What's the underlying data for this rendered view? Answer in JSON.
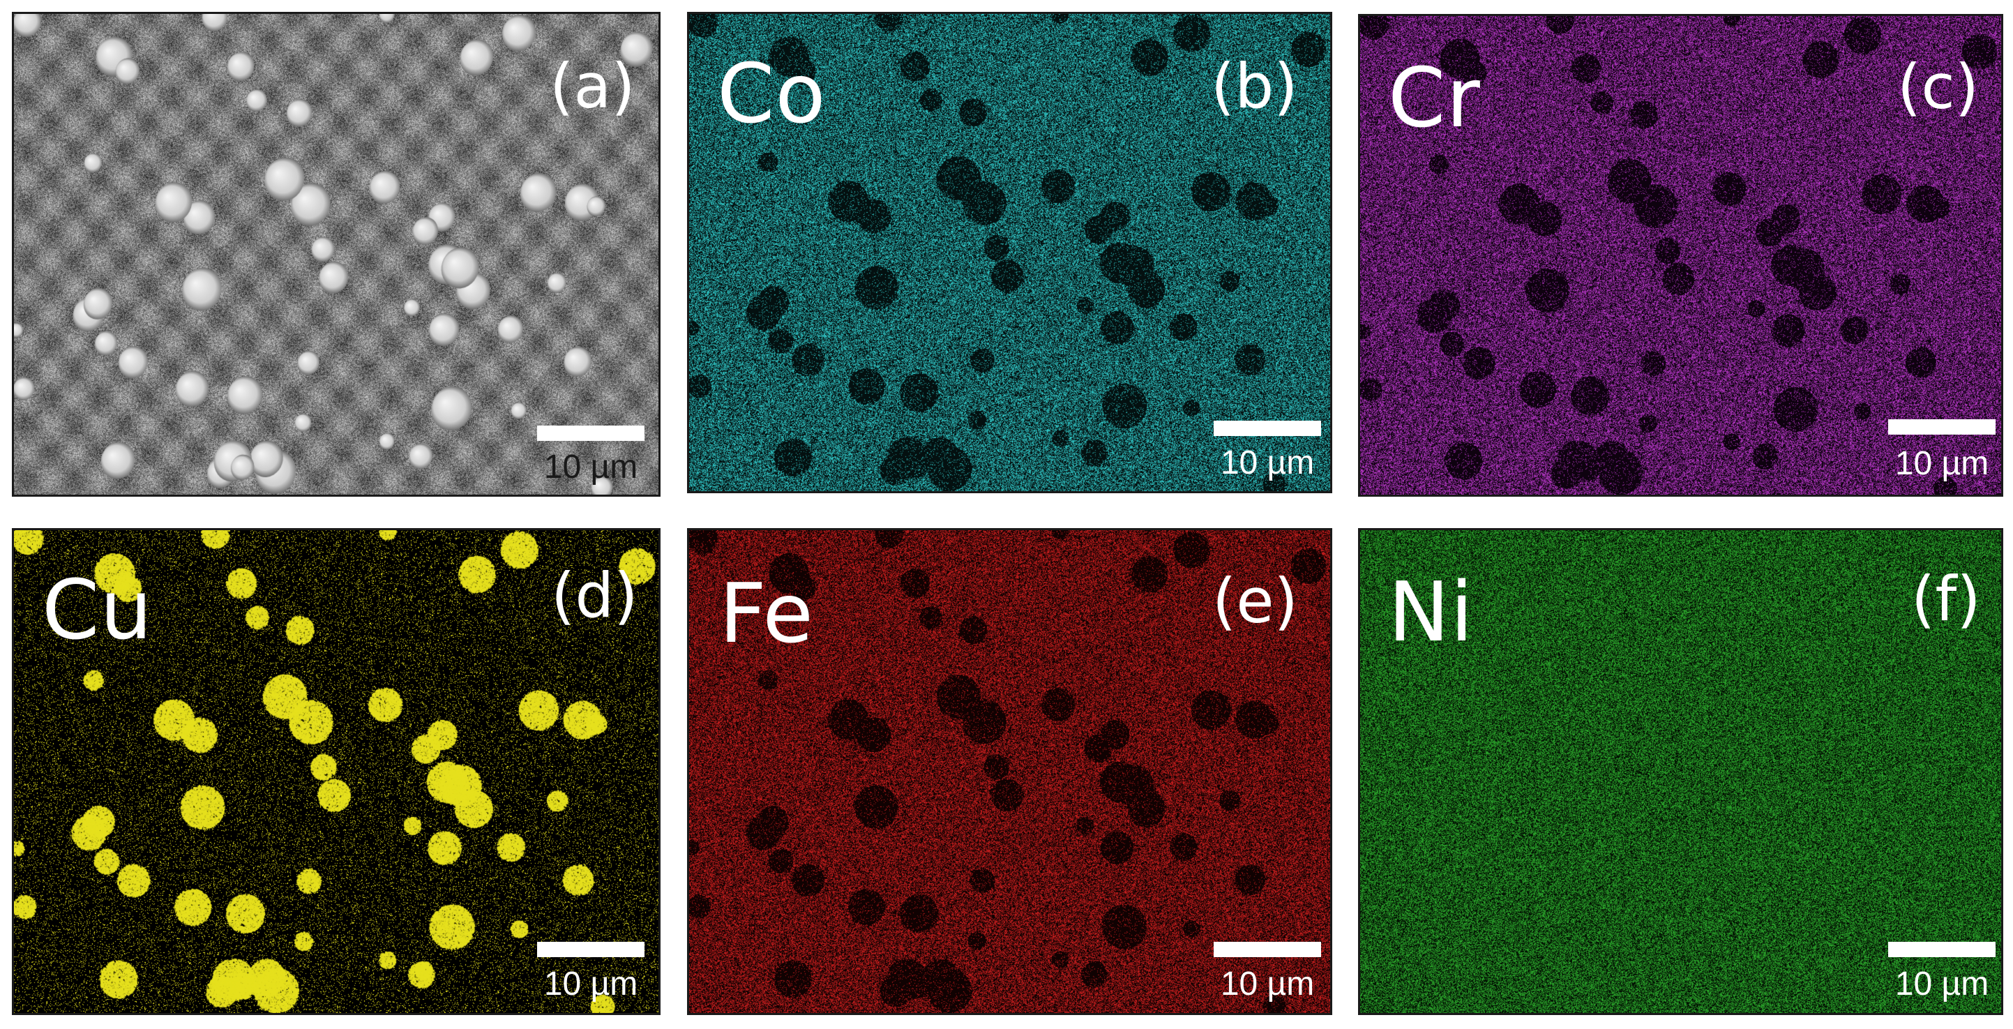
{
  "figure": {
    "panels": [
      {
        "id": "a",
        "letter": "(a)",
        "element": "",
        "map_color": "#bdbdbd",
        "background": "#3c3c3c",
        "kind": "sem",
        "scale_label": "10 µm"
      },
      {
        "id": "b",
        "letter": "(b)",
        "element": "Co",
        "map_color": "#33d3d3",
        "background": "#041010",
        "kind": "eds",
        "scale_label": "10 µm"
      },
      {
        "id": "c",
        "letter": "(c)",
        "element": "Cr",
        "map_color": "#c43bd6",
        "background": "#0e020f",
        "kind": "eds",
        "scale_label": "10 µm"
      },
      {
        "id": "d",
        "letter": "(d)",
        "element": "Cu",
        "map_color": "#e6e01e",
        "background": "#000000",
        "kind": "eds-sparse",
        "scale_label": "10 µm"
      },
      {
        "id": "e",
        "letter": "(e)",
        "element": "Fe",
        "map_color": "#d82020",
        "background": "#100202",
        "kind": "eds",
        "scale_label": "10 µm"
      },
      {
        "id": "f",
        "letter": "(f)",
        "element": "Ni",
        "map_color": "#2fb52f",
        "background": "#021002",
        "kind": "eds",
        "scale_label": "10 µm"
      }
    ]
  }
}
